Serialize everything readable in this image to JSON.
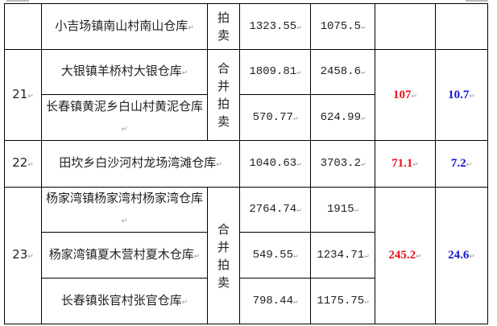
{
  "return_mark": "↵",
  "rows": [
    {
      "no": "",
      "name": "小吉场镇南山村南山仓库",
      "method": "拍卖",
      "a": "1323.55",
      "b": "1075.5"
    },
    {
      "no": "21",
      "name": "大银镇羊桥村大银仓库",
      "method": "合并拍卖",
      "a": "1809.81",
      "b": "2458.6",
      "red": "107",
      "blue": "10.7"
    },
    {
      "name": "长春镇黄泥乡白山村黄泥仓库",
      "a": "570.77",
      "b": "624.99"
    },
    {
      "no": "22",
      "name": "田坎乡白沙河村龙场湾滩仓库",
      "a": "1040.63",
      "b": "3703.2",
      "red": "71.1",
      "blue": "7.2"
    },
    {
      "no": "23",
      "name": "杨家湾镇杨家湾村杨家湾仓库",
      "method": "合并拍卖",
      "a": "2764.74",
      "b": "1915",
      "red": "245.2",
      "blue": "24.6"
    },
    {
      "name": "杨家湾镇夏木营村夏木仓库",
      "a": "549.55",
      "b": "1234.71"
    },
    {
      "name": "长春镇张官村张官仓库",
      "a": "798.44",
      "b": "1175.75"
    }
  ],
  "colors": {
    "red": "#e8141c",
    "blue": "#1515d6"
  }
}
